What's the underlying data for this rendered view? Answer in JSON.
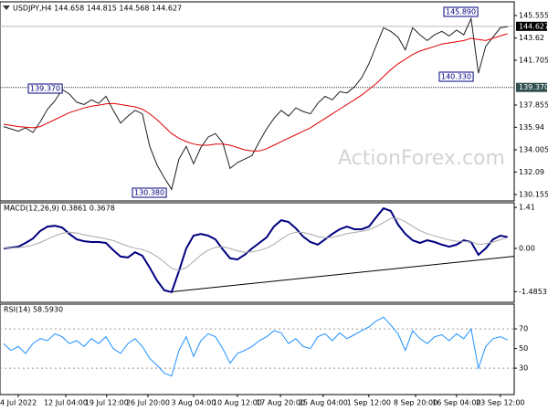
{
  "chart_data": [
    {
      "type": "line",
      "title": "USDJPY,H4 144.658 144.815 144.568 144.627",
      "watermark": "ActionForex.com",
      "ylim": [
        129.76,
        146.5
      ],
      "yticks": [
        145.555,
        143.62,
        141.705,
        137.855,
        135.94,
        134.005,
        132.09,
        130.155
      ],
      "price_lines": [
        {
          "value": 144.627,
          "label": "144.627"
        },
        {
          "value": 139.37,
          "label": "139.370"
        }
      ],
      "annotations": [
        "145.890",
        "139.370",
        "140.330",
        "130.380"
      ],
      "series": [
        {
          "color": "#1f1f1f",
          "values": [
            136.0,
            135.8,
            135.6,
            135.9,
            135.5,
            136.4,
            137.5,
            138.2,
            139.2,
            138.8,
            138.1,
            137.9,
            138.3,
            138.0,
            138.6,
            137.4,
            136.3,
            136.9,
            137.4,
            137.1,
            134.3,
            132.7,
            131.6,
            130.6,
            133.2,
            134.3,
            132.8,
            134.2,
            135.1,
            135.4,
            134.6,
            132.4,
            132.9,
            133.2,
            133.5,
            134.7,
            135.8,
            136.7,
            137.4,
            136.9,
            137.6,
            137.3,
            137.1,
            138.0,
            138.6,
            138.3,
            139.0,
            138.9,
            139.4,
            140.2,
            141.4,
            142.96,
            144.5,
            144.2,
            143.7,
            142.6,
            144.5,
            143.9,
            143.4,
            143.9,
            144.2,
            143.8,
            144.3,
            143.9,
            145.3,
            140.6,
            142.9,
            143.7,
            144.5,
            144.6
          ]
        },
        {
          "color": "#e00000",
          "values": [
            136.2,
            136.1,
            136.0,
            135.95,
            135.9,
            136.0,
            136.3,
            136.6,
            136.9,
            137.2,
            137.4,
            137.6,
            137.75,
            137.85,
            137.95,
            138.0,
            137.9,
            137.8,
            137.7,
            137.5,
            137.1,
            136.6,
            136.0,
            135.4,
            135.0,
            134.7,
            134.5,
            134.4,
            134.4,
            134.5,
            134.5,
            134.4,
            134.2,
            134.0,
            133.9,
            133.9,
            134.1,
            134.4,
            134.7,
            135.0,
            135.3,
            135.6,
            135.9,
            136.3,
            136.7,
            137.1,
            137.5,
            137.9,
            138.3,
            138.7,
            139.2,
            139.7,
            140.3,
            140.9,
            141.4,
            141.8,
            142.2,
            142.5,
            142.7,
            142.9,
            143.1,
            143.2,
            143.3,
            143.4,
            143.6,
            143.5,
            143.4,
            143.6,
            143.8,
            144.0
          ]
        }
      ]
    },
    {
      "type": "line",
      "title": "MACD(12,26,9) 0.3861 0.3678",
      "ylim": [
        -1.82,
        1.57
      ],
      "yticks": [
        1.41,
        {
          "value": 0,
          "label": "0.00"
        },
        -1.4853
      ],
      "trendline": {
        "x": [
          23,
          69.9
        ],
        "values": [
          -1.49,
          -0.27
        ]
      },
      "series": [
        {
          "color": "#000080",
          "values": [
            0.0,
            0.03,
            0.06,
            0.19,
            0.34,
            0.6,
            0.75,
            0.78,
            0.72,
            0.5,
            0.31,
            0.25,
            0.22,
            0.22,
            0.19,
            -0.06,
            -0.28,
            -0.31,
            -0.13,
            -0.25,
            -0.66,
            -1.1,
            -1.44,
            -1.5,
            -0.78,
            0.0,
            0.44,
            0.5,
            0.44,
            0.31,
            -0.03,
            -0.34,
            -0.38,
            -0.22,
            0.0,
            0.19,
            0.38,
            0.75,
            0.97,
            0.91,
            0.69,
            0.41,
            0.22,
            0.13,
            0.31,
            0.5,
            0.66,
            0.75,
            0.66,
            0.66,
            0.75,
            1.07,
            1.38,
            1.29,
            0.82,
            0.5,
            0.28,
            0.19,
            0.28,
            0.22,
            0.13,
            0.06,
            0.13,
            0.28,
            0.22,
            -0.22,
            0.0,
            0.31,
            0.44,
            0.39
          ]
        },
        {
          "color": "#a8a8a8",
          "values": [
            0.02,
            0.02,
            0.03,
            0.06,
            0.12,
            0.2,
            0.32,
            0.43,
            0.52,
            0.56,
            0.53,
            0.47,
            0.42,
            0.38,
            0.33,
            0.27,
            0.17,
            0.08,
            0.01,
            -0.04,
            -0.13,
            -0.28,
            -0.47,
            -0.68,
            -0.76,
            -0.66,
            -0.45,
            -0.23,
            -0.06,
            0.04,
            0.06,
            0.0,
            -0.08,
            -0.13,
            -0.12,
            -0.07,
            0.01,
            0.14,
            0.32,
            0.48,
            0.56,
            0.55,
            0.49,
            0.41,
            0.37,
            0.38,
            0.44,
            0.51,
            0.55,
            0.59,
            0.64,
            0.75,
            0.89,
            1.03,
            1.03,
            0.92,
            0.76,
            0.61,
            0.51,
            0.43,
            0.36,
            0.29,
            0.25,
            0.24,
            0.23,
            0.14,
            0.16,
            0.22,
            0.3,
            0.37
          ]
        }
      ]
    },
    {
      "type": "line",
      "title": "RSI(14) 58.5930",
      "ylim": [
        5,
        84
      ],
      "yticks": [
        70,
        50,
        30
      ],
      "levels": [
        70,
        30
      ],
      "xlim": [
        -0.5,
        69.9
      ],
      "xticks": [
        {
          "value": 2,
          "label": "4 Jul 2022"
        },
        {
          "value": 8.5,
          "label": "12 Jul 04:00"
        },
        {
          "value": 14.1,
          "label": "19 Jul 12:00"
        },
        {
          "value": 19.75,
          "label": "26 Jul 20:00"
        },
        {
          "value": 26,
          "label": "3 Aug 04:00"
        },
        {
          "value": 32,
          "label": "10 Aug 12:00"
        },
        {
          "value": 37.9,
          "label": "17 Aug 20:00"
        },
        {
          "value": 43.75,
          "label": "25 Aug 04:00"
        },
        {
          "value": 50,
          "label": "1 Sep 12:00"
        },
        {
          "value": 56.4,
          "label": "8 Sep 20:00"
        },
        {
          "value": 62,
          "label": "16 Sep 04:00"
        },
        {
          "value": 68,
          "label": "23 Sep 12:00"
        }
      ],
      "series": [
        {
          "color": "#1e90ff",
          "values": [
            55,
            48,
            52,
            45,
            55,
            60,
            58,
            65,
            62,
            55,
            58,
            52,
            60,
            55,
            62,
            50,
            45,
            55,
            60,
            52,
            40,
            33,
            25,
            22,
            48,
            62,
            42,
            58,
            65,
            62,
            50,
            35,
            45,
            48,
            52,
            58,
            62,
            68,
            66,
            55,
            60,
            52,
            50,
            62,
            65,
            58,
            66,
            60,
            64,
            68,
            72,
            78,
            82,
            74,
            65,
            48,
            68,
            60,
            55,
            62,
            64,
            58,
            65,
            60,
            70,
            30,
            52,
            60,
            62,
            58.59
          ]
        }
      ]
    }
  ]
}
